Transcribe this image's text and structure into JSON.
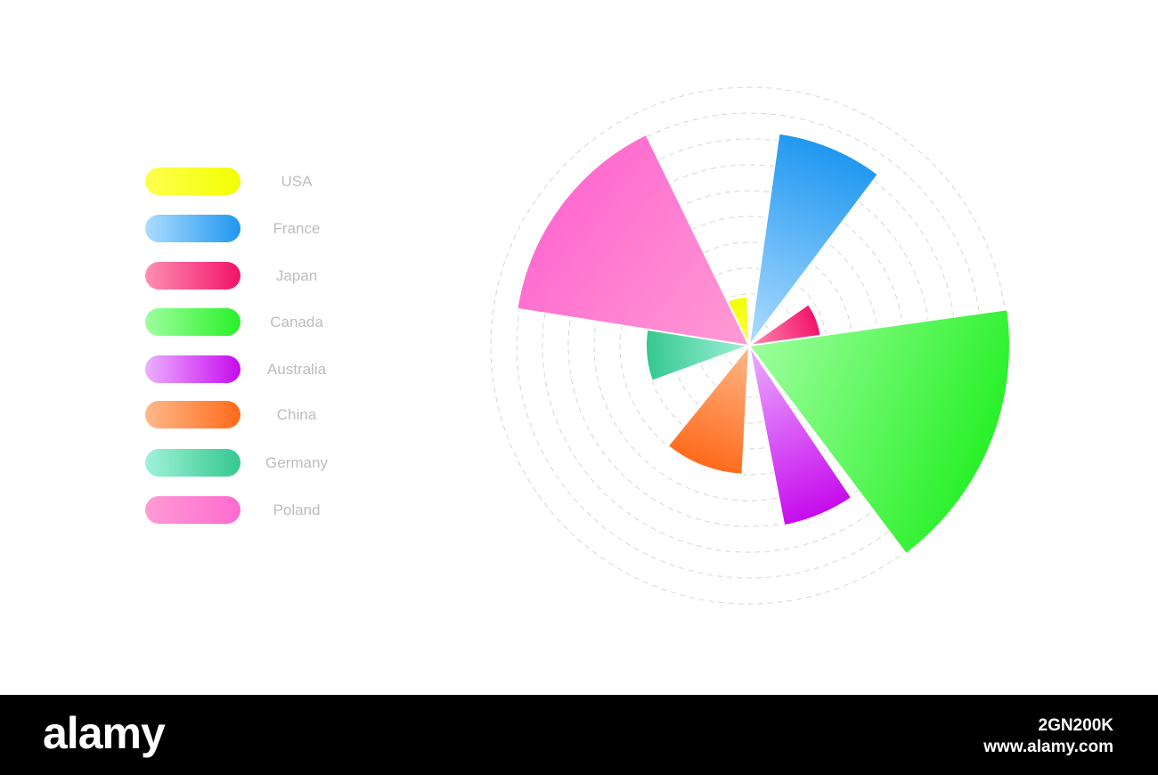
{
  "chart_data": {
    "type": "polar-area",
    "title": "",
    "categories": [
      "USA",
      "France",
      "Japan",
      "Canada",
      "Australia",
      "China",
      "Germany",
      "Poland"
    ],
    "values": [
      1.9,
      8.3,
      2.8,
      10.1,
      7.1,
      5.0,
      4.0,
      9.1
    ],
    "start_angles_deg": [
      -34,
      8,
      55,
      82,
      146,
      183,
      250,
      279
    ],
    "end_angles_deg": [
      -2,
      37,
      90,
      143,
      169,
      219,
      280,
      334
    ],
    "ring_count": 10,
    "grid": "dashed-circles",
    "legend_position": "left",
    "colors": [
      [
        "#ffff4f",
        "#f2ff00"
      ],
      [
        "#aedcff",
        "#1f97f0"
      ],
      [
        "#ff8fb3",
        "#f21268"
      ],
      [
        "#9dff9d",
        "#29f029"
      ],
      [
        "#ecb0ff",
        "#c60aed"
      ],
      [
        "#ffb88a",
        "#ff6a1a"
      ],
      [
        "#9ff2d8",
        "#35c790"
      ],
      [
        "#ff9bd4",
        "#ff6bcf"
      ]
    ]
  },
  "footer": {
    "brand": "alamy",
    "image_id": "2GN200K",
    "url": "www.alamy.com"
  }
}
